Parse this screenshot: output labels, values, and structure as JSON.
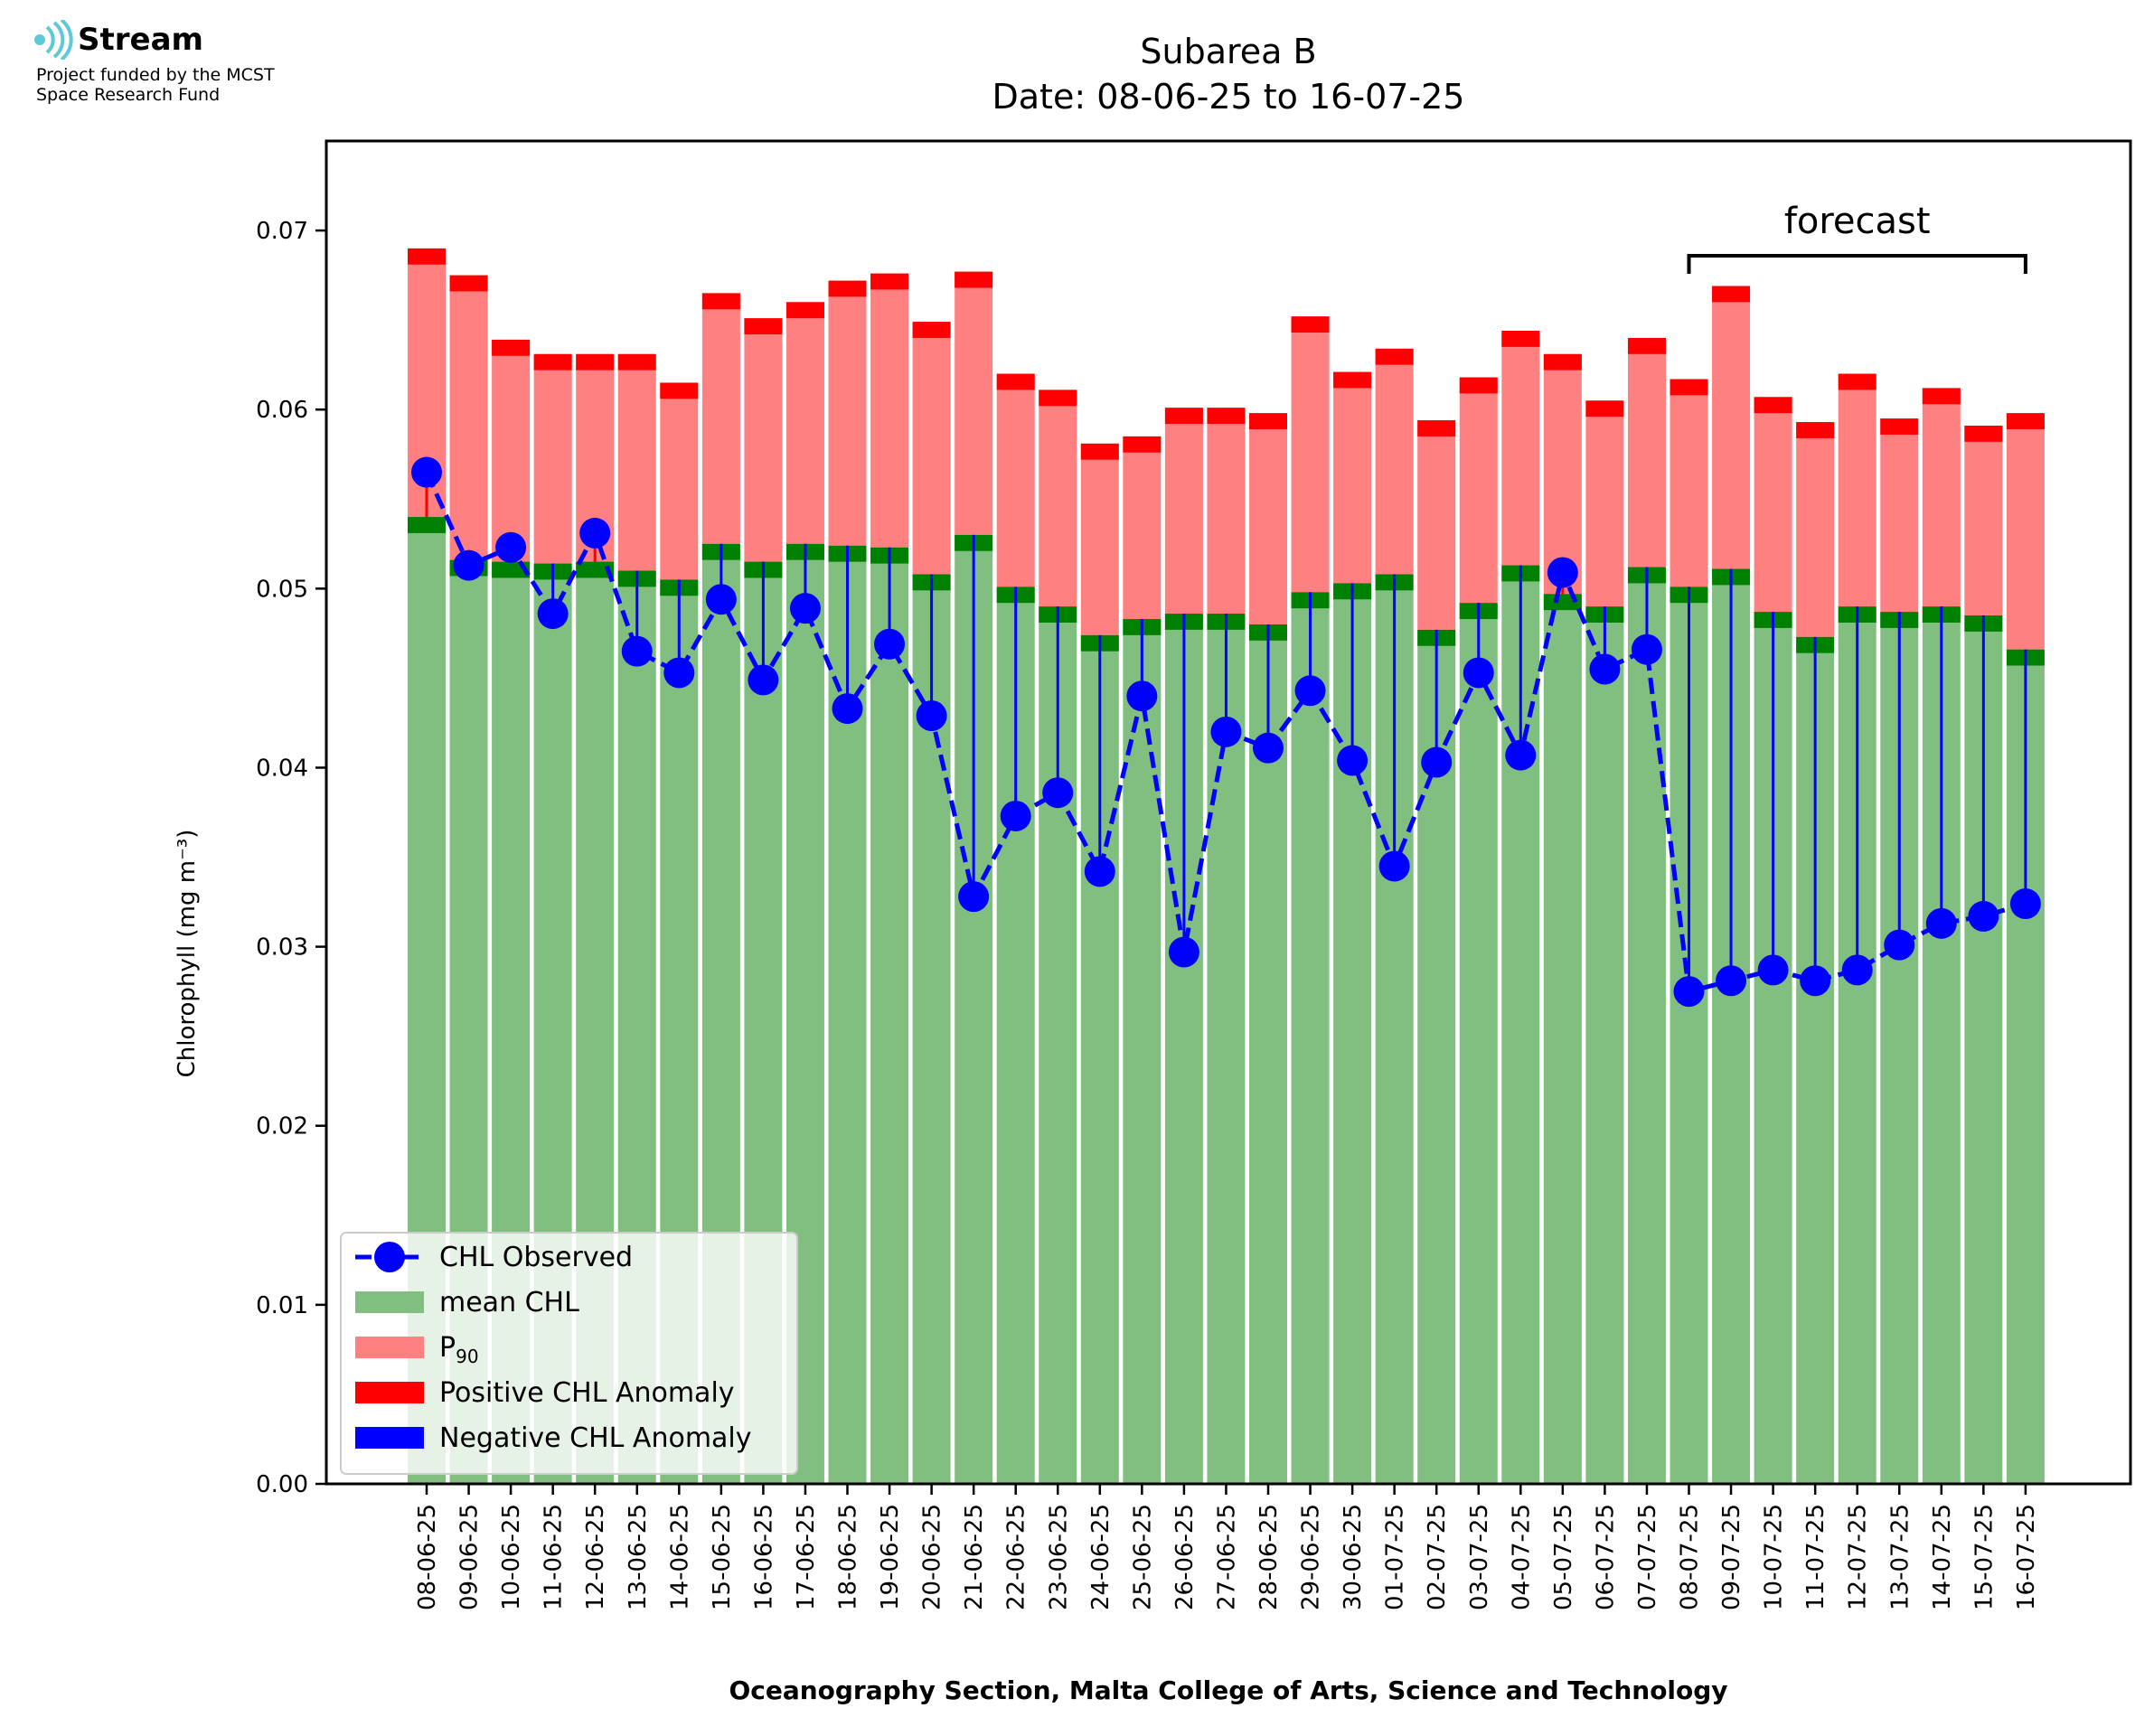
{
  "logo": {
    "brand": "Stream",
    "line1": "Project funded by the MCST",
    "line2": "Space Research Fund",
    "icon": "wave-arcs-icon",
    "color": "#5fc9d6"
  },
  "chart_data": {
    "type": "bar",
    "title": "Subarea B",
    "subtitle": "Date: 08-06-25 to 16-07-25",
    "xlabel": "Oceanography Section, Malta College of Arts, Science and Technology",
    "ylabel": "Chlorophyll (mg m⁻³)",
    "ylim": [
      0,
      0.075
    ],
    "yticks": [
      "0.00",
      "0.01",
      "0.02",
      "0.03",
      "0.04",
      "0.05",
      "0.06",
      "0.07"
    ],
    "grid": false,
    "legend_position": "lower-left",
    "forecast_label": "forecast",
    "forecast_range": [
      "08-07-25",
      "16-07-25"
    ],
    "colors": {
      "mean": "#80bf80",
      "mean_dark": "#008000",
      "p90": "#ff8080",
      "positive": "#ff0000",
      "negative": "#0000ff",
      "observed": "#0000ff"
    },
    "legend": [
      {
        "key": "observed",
        "label": "CHL Observed"
      },
      {
        "key": "mean",
        "label": "mean CHL"
      },
      {
        "key": "p90",
        "label": "P",
        "sub": "90"
      },
      {
        "key": "positive",
        "label": "Positive CHL Anomaly"
      },
      {
        "key": "negative",
        "label": "Negative CHL Anomaly"
      }
    ],
    "categories": [
      "08-06-25",
      "09-06-25",
      "10-06-25",
      "11-06-25",
      "12-06-25",
      "13-06-25",
      "14-06-25",
      "15-06-25",
      "16-06-25",
      "17-06-25",
      "18-06-25",
      "19-06-25",
      "20-06-25",
      "21-06-25",
      "22-06-25",
      "23-06-25",
      "24-06-25",
      "25-06-25",
      "26-06-25",
      "27-06-25",
      "28-06-25",
      "29-06-25",
      "30-06-25",
      "01-07-25",
      "02-07-25",
      "03-07-25",
      "04-07-25",
      "05-07-25",
      "06-07-25",
      "07-07-25",
      "08-07-25",
      "09-07-25",
      "10-07-25",
      "11-07-25",
      "12-07-25",
      "13-07-25",
      "14-07-25",
      "15-07-25",
      "16-07-25"
    ],
    "series": [
      {
        "name": "mean CHL",
        "values": [
          0.054,
          0.0516,
          0.0515,
          0.0514,
          0.0515,
          0.051,
          0.0505,
          0.0525,
          0.0515,
          0.0525,
          0.0524,
          0.0523,
          0.0508,
          0.053,
          0.0501,
          0.049,
          0.0474,
          0.0483,
          0.0486,
          0.0486,
          0.048,
          0.0498,
          0.0503,
          0.0508,
          0.0477,
          0.0492,
          0.0513,
          0.0497,
          0.049,
          0.0512,
          0.0501,
          0.0511,
          0.0487,
          0.0473,
          0.049,
          0.0487,
          0.049,
          0.0485,
          0.0466
        ]
      },
      {
        "name": "P90",
        "values": [
          0.0681,
          0.0666,
          0.063,
          0.0622,
          0.0622,
          0.0622,
          0.0606,
          0.0656,
          0.0642,
          0.0651,
          0.0663,
          0.0667,
          0.064,
          0.0668,
          0.0611,
          0.0602,
          0.0572,
          0.0576,
          0.0592,
          0.0592,
          0.0589,
          0.0643,
          0.0612,
          0.0625,
          0.0585,
          0.0609,
          0.0635,
          0.0622,
          0.0596,
          0.0631,
          0.0608,
          0.066,
          0.0598,
          0.0584,
          0.0611,
          0.0586,
          0.0603,
          0.0582,
          0.0589
        ]
      },
      {
        "name": "CHL Observed",
        "values": [
          0.0565,
          0.0513,
          0.0523,
          0.0486,
          0.0531,
          0.0465,
          0.0453,
          0.0494,
          0.0449,
          0.0489,
          0.0433,
          0.0469,
          0.0429,
          0.0328,
          0.0373,
          0.0386,
          0.0342,
          0.044,
          0.0297,
          0.042,
          0.0411,
          0.0443,
          0.0404,
          0.0345,
          0.0403,
          0.0453,
          0.0407,
          0.0509,
          0.0455,
          0.0466,
          0.0275,
          0.0281,
          0.0287,
          0.0281,
          0.0287,
          0.0301,
          0.0313,
          0.0317,
          0.0324
        ]
      }
    ]
  }
}
